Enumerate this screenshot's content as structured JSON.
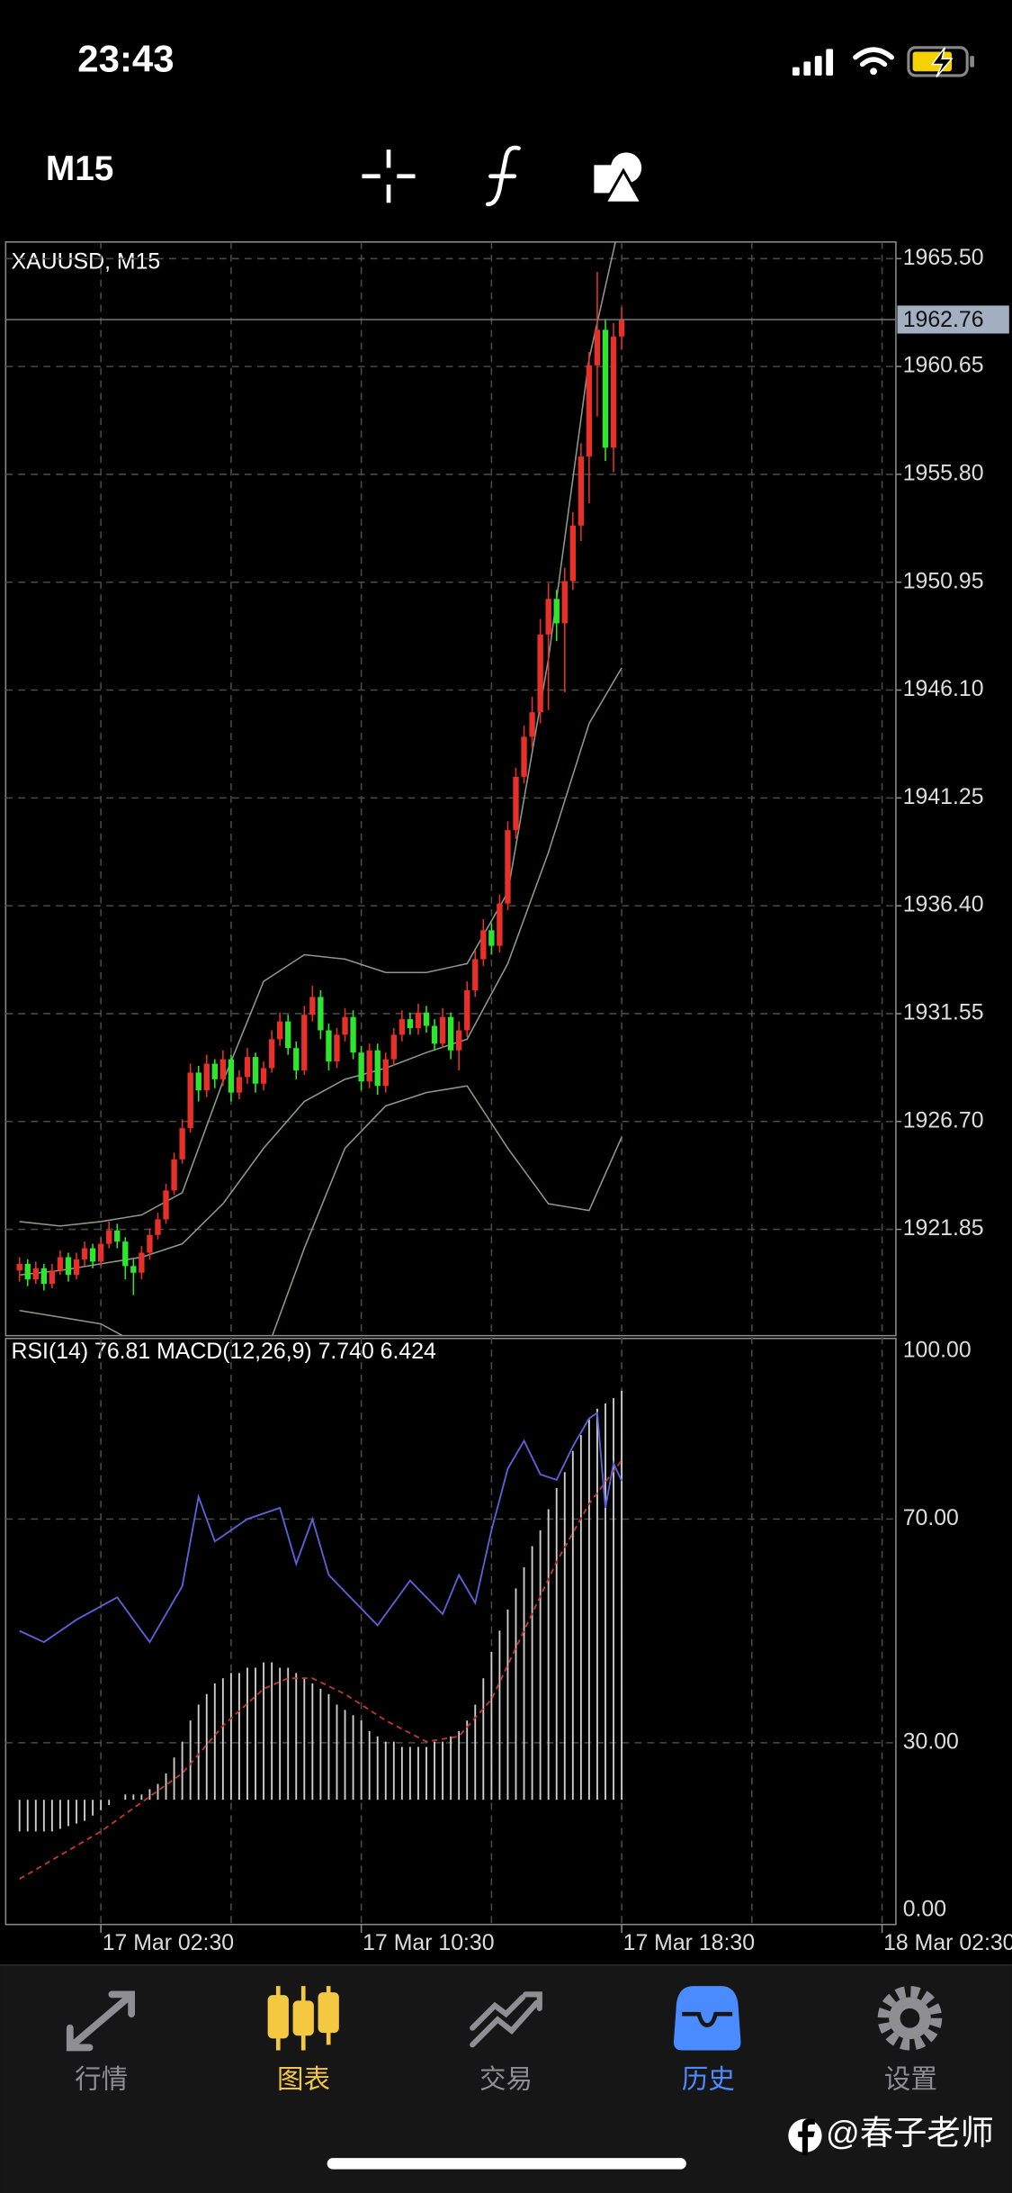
{
  "status_bar": {
    "time": "23:43"
  },
  "toolbar": {
    "timeframe": "M15"
  },
  "chart_data": {
    "type": "candlestick",
    "title": "XAUUSD, M15",
    "up_color": "#e8302a",
    "down_color": "#2ee62e",
    "candles": [
      [
        1920.0,
        1920.6,
        1919.5,
        1920.3
      ],
      [
        1920.3,
        1920.5,
        1919.3,
        1919.6
      ],
      [
        1919.6,
        1920.4,
        1919.4,
        1920.1
      ],
      [
        1920.1,
        1920.3,
        1919.1,
        1919.4
      ],
      [
        1919.4,
        1920.3,
        1919.2,
        1920.0
      ],
      [
        1920.0,
        1920.9,
        1919.8,
        1920.6
      ],
      [
        1920.6,
        1920.8,
        1919.5,
        1919.8
      ],
      [
        1919.8,
        1920.8,
        1919.6,
        1920.5
      ],
      [
        1920.5,
        1921.3,
        1920.2,
        1921.0
      ],
      [
        1921.0,
        1921.2,
        1920.1,
        1920.4
      ],
      [
        1920.4,
        1921.5,
        1920.2,
        1921.2
      ],
      [
        1921.2,
        1922.2,
        1921.0,
        1921.8
      ],
      [
        1921.8,
        1922.1,
        1921.0,
        1921.3
      ],
      [
        1921.3,
        1921.5,
        1919.6,
        1920.2
      ],
      [
        1920.2,
        1920.5,
        1918.9,
        1919.9
      ],
      [
        1919.9,
        1921.1,
        1919.6,
        1920.8
      ],
      [
        1920.8,
        1921.9,
        1920.5,
        1921.6
      ],
      [
        1921.6,
        1922.6,
        1921.4,
        1922.3
      ],
      [
        1922.3,
        1923.9,
        1922.1,
        1923.6
      ],
      [
        1923.6,
        1925.3,
        1923.4,
        1925.0
      ],
      [
        1925.0,
        1926.8,
        1924.8,
        1926.4
      ],
      [
        1926.4,
        1929.3,
        1926.2,
        1928.9
      ],
      [
        1928.9,
        1929.2,
        1927.6,
        1928.1
      ],
      [
        1928.1,
        1929.7,
        1927.8,
        1929.3
      ],
      [
        1929.3,
        1929.5,
        1928.2,
        1928.6
      ],
      [
        1928.6,
        1929.9,
        1928.3,
        1929.5
      ],
      [
        1929.5,
        1929.7,
        1927.6,
        1928.0
      ],
      [
        1928.0,
        1929.0,
        1927.7,
        1928.7
      ],
      [
        1928.7,
        1930.0,
        1928.4,
        1929.6
      ],
      [
        1929.6,
        1929.8,
        1928.0,
        1928.4
      ],
      [
        1928.4,
        1929.4,
        1928.1,
        1929.1
      ],
      [
        1929.1,
        1930.8,
        1928.9,
        1930.4
      ],
      [
        1930.4,
        1931.6,
        1930.1,
        1931.2
      ],
      [
        1931.2,
        1931.5,
        1929.7,
        1930.0
      ],
      [
        1930.0,
        1930.3,
        1928.6,
        1929.0
      ],
      [
        1929.0,
        1931.9,
        1928.8,
        1931.5
      ],
      [
        1931.5,
        1932.8,
        1931.2,
        1932.3
      ],
      [
        1932.3,
        1932.6,
        1930.4,
        1930.8
      ],
      [
        1930.8,
        1931.1,
        1929.0,
        1929.4
      ],
      [
        1929.4,
        1930.9,
        1929.1,
        1930.6
      ],
      [
        1930.6,
        1931.8,
        1930.3,
        1931.4
      ],
      [
        1931.4,
        1931.7,
        1929.5,
        1929.8
      ],
      [
        1929.8,
        1930.1,
        1928.1,
        1928.5
      ],
      [
        1928.5,
        1930.2,
        1928.2,
        1929.9
      ],
      [
        1929.9,
        1930.2,
        1927.9,
        1928.3
      ],
      [
        1928.3,
        1929.8,
        1928.0,
        1929.5
      ],
      [
        1929.5,
        1930.9,
        1929.2,
        1930.6
      ],
      [
        1930.6,
        1931.7,
        1930.3,
        1931.3
      ],
      [
        1931.3,
        1931.6,
        1930.6,
        1930.9
      ],
      [
        1930.9,
        1932.0,
        1930.6,
        1931.6
      ],
      [
        1931.6,
        1931.9,
        1930.7,
        1931.0
      ],
      [
        1931.0,
        1931.3,
        1929.9,
        1930.2
      ],
      [
        1930.2,
        1931.8,
        1930.0,
        1931.4
      ],
      [
        1931.4,
        1931.6,
        1929.5,
        1929.9
      ],
      [
        1929.9,
        1931.2,
        1929.0,
        1930.8
      ],
      [
        1930.8,
        1933.0,
        1930.5,
        1932.6
      ],
      [
        1932.6,
        1934.4,
        1932.3,
        1934.0
      ],
      [
        1934.0,
        1935.8,
        1933.7,
        1935.3
      ],
      [
        1935.3,
        1935.6,
        1934.2,
        1934.6
      ],
      [
        1934.6,
        1936.9,
        1934.3,
        1936.5
      ],
      [
        1936.5,
        1940.2,
        1936.2,
        1939.8
      ],
      [
        1939.8,
        1942.6,
        1939.4,
        1942.2
      ],
      [
        1942.2,
        1944.5,
        1941.9,
        1944.0
      ],
      [
        1944.0,
        1945.8,
        1943.5,
        1945.1
      ],
      [
        1945.1,
        1949.3,
        1944.6,
        1948.6
      ],
      [
        1948.6,
        1950.9,
        1945.2,
        1950.2
      ],
      [
        1950.2,
        1950.6,
        1948.3,
        1949.1
      ],
      [
        1949.1,
        1951.6,
        1946.0,
        1951.0
      ],
      [
        1951.0,
        1954.1,
        1950.6,
        1953.5
      ],
      [
        1953.5,
        1957.2,
        1952.8,
        1956.6
      ],
      [
        1956.6,
        1961.3,
        1954.5,
        1960.7
      ],
      [
        1960.7,
        1964.9,
        1958.4,
        1962.3
      ],
      [
        1962.3,
        1962.8,
        1956.4,
        1957.0
      ],
      [
        1957.0,
        1962.6,
        1955.9,
        1962.0
      ],
      [
        1962.0,
        1963.3,
        1961.4,
        1962.76
      ]
    ],
    "ylim": [
      1917.07,
      1966.25
    ],
    "yticks": [
      {
        "value": 1965.5,
        "label": "1965.50"
      },
      1960.65,
      {
        "value": 1955.8,
        "label": "1955.80"
      },
      1950.95,
      {
        "value": 1946.1,
        "label": "1946.10"
      },
      1941.25,
      {
        "value": 1936.4,
        "label": "1936.40"
      },
      1931.55,
      {
        "value": 1926.7,
        "label": "1926.70"
      },
      1921.85
    ],
    "xlim": [
      -1.7,
      107.7
    ],
    "xticks": [
      {
        "value": 10,
        "label": "17 Mar 02:30"
      },
      {
        "value": 42,
        "label": "17 Mar 10:30"
      },
      {
        "value": 74,
        "label": "17 Mar 18:30"
      },
      {
        "value": 106,
        "label": "18 Mar 02:30"
      }
    ],
    "grid": true,
    "bollinger": {
      "color": "#8c9a8c",
      "x": [
        0,
        5,
        10,
        15,
        20,
        25,
        30,
        35,
        40,
        45,
        50,
        55,
        60,
        65,
        70,
        74
      ],
      "upper": [
        1922.2,
        1922.0,
        1922.2,
        1922.5,
        1923.5,
        1928.5,
        1933.0,
        1934.2,
        1934.0,
        1933.4,
        1933.4,
        1933.8,
        1937.0,
        1947.5,
        1961.0,
        1967.5
      ],
      "middle": [
        1919.8,
        1920.0,
        1920.3,
        1920.6,
        1921.2,
        1923.0,
        1925.5,
        1927.6,
        1928.6,
        1929.1,
        1929.8,
        1930.4,
        1933.8,
        1938.8,
        1944.6,
        1947.1
      ],
      "lower": [
        1918.2,
        1917.9,
        1917.6,
        1916.6,
        1915.0,
        1913.0,
        1916.0,
        1921.0,
        1925.5,
        1927.4,
        1928.0,
        1928.3,
        1925.5,
        1923.0,
        1922.7,
        1926.0
      ]
    },
    "indicator": {
      "title": "RSI(14) 76.81 MACD(12,26,9) 7.740 6.424",
      "ylim": [
        -2.5,
        102.3
      ],
      "yticks": [
        {
          "value": 100,
          "label": "100.00"
        },
        {
          "value": 70,
          "label": "70.00"
        },
        {
          "value": 30,
          "label": "30.00"
        },
        {
          "value": 0,
          "label": "0.00"
        }
      ],
      "y2lim": [
        -2.36,
        8.73
      ],
      "rsi": {
        "color": "#5a62d6",
        "x": [
          0,
          3,
          7,
          12,
          16,
          20,
          22,
          24,
          28,
          32,
          34,
          36,
          38,
          40,
          44,
          48,
          52,
          54,
          56,
          58,
          60,
          62,
          64,
          66,
          68,
          70,
          71,
          72,
          73,
          74
        ],
        "values": [
          50,
          48,
          52,
          56,
          48,
          58,
          74,
          66,
          70,
          72,
          62,
          70,
          60,
          57,
          51,
          59,
          53,
          60,
          55,
          68,
          79,
          84,
          78,
          77,
          83,
          88,
          89,
          72,
          80,
          76.81
        ]
      },
      "macd": {
        "color": "#cfcfcf",
        "axis": "y2",
        "values": [
          -0.6,
          -0.6,
          -0.6,
          -0.6,
          -0.6,
          -0.55,
          -0.5,
          -0.45,
          -0.4,
          -0.3,
          -0.2,
          -0.1,
          0.0,
          0.1,
          0.1,
          0.1,
          0.2,
          0.3,
          0.5,
          0.8,
          1.1,
          1.5,
          1.8,
          2.0,
          2.2,
          2.3,
          2.4,
          2.4,
          2.5,
          2.5,
          2.6,
          2.6,
          2.5,
          2.5,
          2.4,
          2.3,
          2.2,
          2.1,
          2.0,
          1.8,
          1.7,
          1.6,
          1.5,
          1.3,
          1.2,
          1.1,
          1.1,
          1.0,
          1.0,
          1.0,
          1.0,
          1.1,
          1.1,
          1.2,
          1.3,
          1.5,
          1.8,
          2.3,
          2.8,
          3.2,
          3.6,
          4.0,
          4.4,
          4.8,
          5.1,
          5.5,
          5.9,
          6.2,
          6.6,
          6.9,
          7.2,
          7.4,
          7.5,
          7.6,
          7.74
        ]
      },
      "signal": {
        "color": "#c0392b",
        "axis": "y2",
        "x": [
          0,
          10,
          20,
          25,
          30,
          33,
          36,
          40,
          45,
          50,
          54,
          58,
          62,
          66,
          70,
          74
        ],
        "values": [
          -1.5,
          -0.6,
          0.5,
          1.4,
          2.1,
          2.3,
          2.3,
          2.0,
          1.5,
          1.1,
          1.2,
          1.9,
          3.2,
          4.5,
          5.6,
          6.424
        ]
      }
    }
  },
  "tab_bar": {
    "tabs": [
      {
        "label": "行情",
        "color": "#8e8e93"
      },
      {
        "label": "图表",
        "color": "#f5c842"
      },
      {
        "label": "交易",
        "color": "#8e8e93"
      },
      {
        "label": "历史",
        "color": "#4a8cff"
      },
      {
        "label": "设置",
        "color": "#8e8e93"
      }
    ]
  },
  "watermark": "@春子老师"
}
